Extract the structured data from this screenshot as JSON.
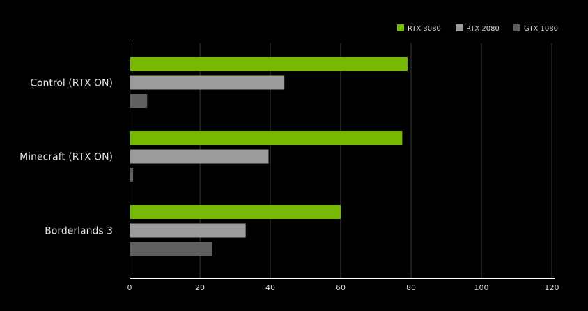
{
  "chart_data": {
    "type": "bar",
    "orientation": "horizontal",
    "categories": [
      "Control (RTX ON)",
      "Minecraft (RTX ON)",
      "Borderlands 3"
    ],
    "series": [
      {
        "name": "RTX 3080",
        "values": [
          79,
          77.5,
          60
        ],
        "color": "#76b900"
      },
      {
        "name": "RTX 2080",
        "values": [
          44,
          39.5,
          33
        ],
        "color": "#9b9b9b"
      },
      {
        "name": "GTX 1080",
        "values": [
          5,
          1,
          23.5
        ],
        "color": "#606060"
      }
    ],
    "xlim": [
      0,
      120
    ],
    "x_ticks": [
      "0",
      "20",
      "40",
      "60",
      "80",
      "100",
      "120"
    ],
    "grid": true,
    "legend_position": "top-right",
    "background_color": "#000000",
    "axis_color": "#ffffff",
    "grid_color": "#3a3a3a"
  }
}
